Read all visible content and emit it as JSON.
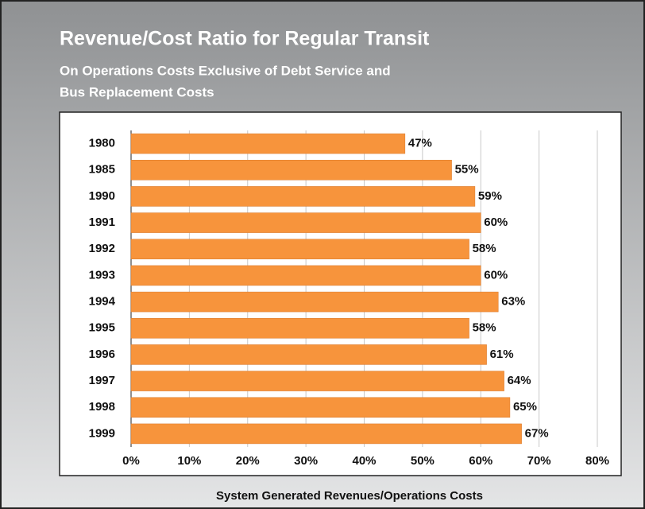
{
  "chart_data": {
    "type": "barh",
    "title": "Revenue/Cost Ratio for Regular Transit",
    "subtitle": [
      "On Operations Costs Exclusive of Debt Service and",
      "Bus Replacement Costs"
    ],
    "x_label": "System Generated Revenues/Operations Costs",
    "categories": [
      "1980",
      "1985",
      "1990",
      "1991",
      "1992",
      "1993",
      "1994",
      "1995",
      "1996",
      "1997",
      "1998",
      "1999"
    ],
    "values": [
      47,
      55,
      59,
      60,
      58,
      60,
      63,
      58,
      61,
      64,
      65,
      67
    ],
    "value_labels": [
      "47%",
      "55%",
      "59%",
      "60%",
      "58%",
      "60%",
      "63%",
      "58%",
      "61%",
      "64%",
      "65%",
      "67%"
    ],
    "color": "#f7943c",
    "xlim": [
      0,
      80
    ],
    "xticks": [
      {
        "value": 0,
        "label": "0%"
      },
      {
        "value": 10,
        "label": "10%"
      },
      {
        "value": 20,
        "label": "20%"
      },
      {
        "value": 30,
        "label": "30%"
      },
      {
        "value": 40,
        "label": "40%"
      },
      {
        "value": 50,
        "label": "50%"
      },
      {
        "value": 60,
        "label": "60%"
      },
      {
        "value": 70,
        "label": "70%"
      },
      {
        "value": 80,
        "label": "80%"
      }
    ],
    "grid": true
  }
}
